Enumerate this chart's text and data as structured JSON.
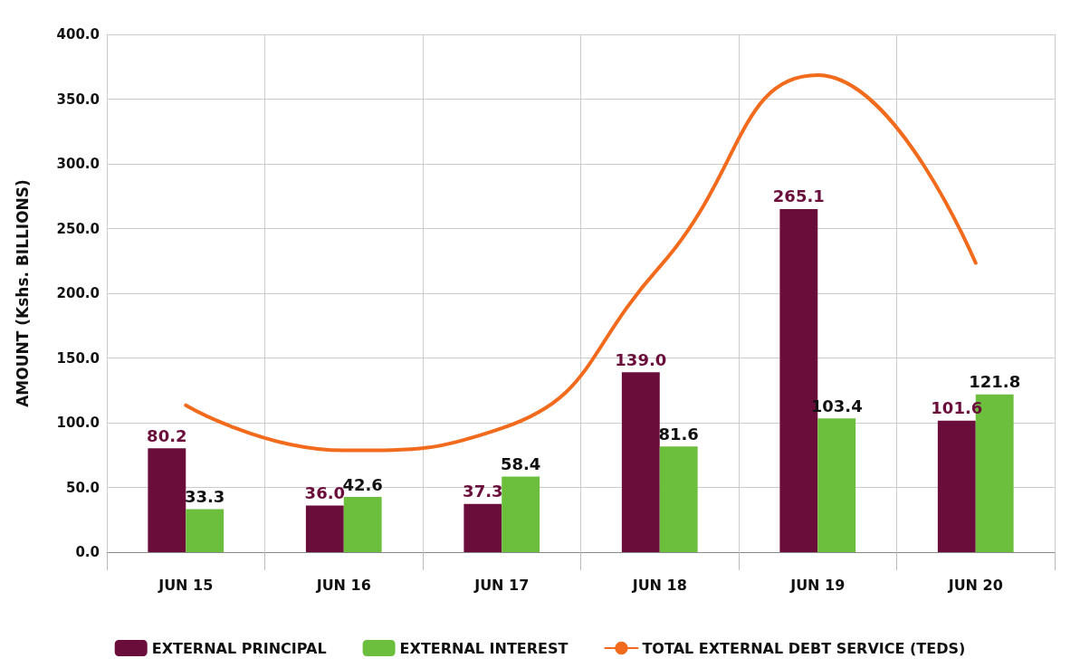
{
  "chart_data": {
    "type": "bar",
    "ylabel": "AMOUNT (Kshs. BILLIONS)",
    "categories": [
      "JUN 15",
      "JUN 16",
      "JUN 17",
      "JUN 18",
      "JUN 19",
      "JUN 20"
    ],
    "series": [
      {
        "name": "EXTERNAL PRINCIPAL",
        "color": "#6a0d3b",
        "values": [
          80.2,
          36.0,
          37.3,
          139.0,
          265.1,
          101.6
        ],
        "value_labels": [
          "80.2",
          "36.0",
          "37.3",
          "139.0",
          "265.1",
          "101.6"
        ]
      },
      {
        "name": "EXTERNAL INTEREST",
        "color": "#6cbf3c",
        "values": [
          33.3,
          42.6,
          58.4,
          81.6,
          103.4,
          121.8
        ],
        "value_labels": [
          "33.3",
          "42.6",
          "58.4",
          "81.6",
          "103.4",
          "121.8"
        ]
      },
      {
        "name": "TOTAL EXTERNAL DEBT SERVICE (TEDS)",
        "type": "line",
        "color": "#f26a1b",
        "values": [
          113.5,
          78.6,
          95.7,
          220.6,
          368.5,
          223.4
        ]
      }
    ],
    "ylim": [
      0,
      400
    ],
    "yticks": [
      {
        "value": 0,
        "label": "0.0"
      },
      {
        "value": 50,
        "label": "50.0"
      },
      {
        "value": 100,
        "label": "100.0"
      },
      {
        "value": 150,
        "label": "150.0"
      },
      {
        "value": 200,
        "label": "200.0"
      },
      {
        "value": 250,
        "label": "250.0"
      },
      {
        "value": 300,
        "label": "300.0"
      },
      {
        "value": 350,
        "label": "350.0"
      },
      {
        "value": 400,
        "label": "400.0"
      }
    ],
    "grid": true,
    "legend": "bottom",
    "marker": "none"
  }
}
